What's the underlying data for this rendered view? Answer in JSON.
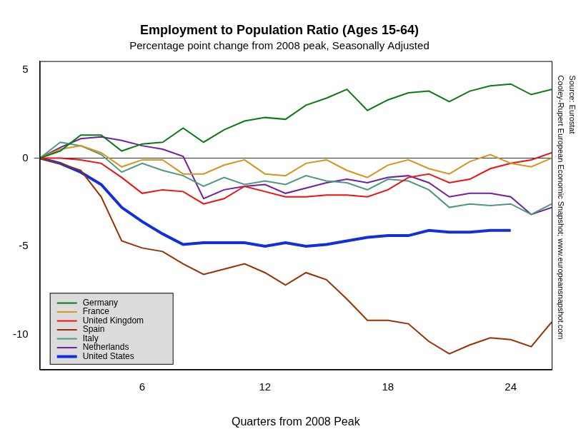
{
  "chart_data": {
    "type": "line",
    "title": "Employment to Population Ratio (Ages 15-64)",
    "subtitle": "Percentage point change from 2008 peak, Seasonally Adjusted",
    "x_label": "Quarters from 2008 Peak",
    "annotations": [
      "Cooley-Rupert European Economic Snapshot; www.europeansnapshot.com",
      "Source: Eurostat"
    ],
    "x": [
      1,
      2,
      3,
      4,
      5,
      6,
      7,
      8,
      9,
      10,
      11,
      12,
      13,
      14,
      15,
      16,
      17,
      18,
      19,
      20,
      21,
      22,
      23,
      24,
      25,
      26
    ],
    "series": [
      {
        "name": "Germany",
        "color": "#0b7a14",
        "line_style": "solid",
        "values": [
          0,
          0.4,
          1.3,
          1.3,
          0.4,
          0.8,
          0.9,
          1.7,
          0.9,
          1.6,
          2.1,
          2.3,
          2.2,
          3.0,
          3.4,
          3.9,
          2.7,
          3.3,
          3.7,
          3.8,
          3.2,
          3.8,
          4.1,
          4.2,
          3.6,
          3.9
        ]
      },
      {
        "name": "France",
        "color": "#d9931f",
        "line_style": "solid",
        "values": [
          0,
          0.5,
          0.7,
          0.3,
          -0.5,
          -0.1,
          -0.1,
          -0.9,
          -0.9,
          -0.4,
          -0.1,
          -0.9,
          -1.0,
          -0.3,
          -0.1,
          -0.7,
          -1.1,
          -0.4,
          -0.1,
          -0.6,
          -0.9,
          -0.2,
          0.2,
          -0.3,
          -0.5,
          0.0
        ]
      },
      {
        "name": "United Kingdom",
        "color": "#f01010",
        "line_style": "solid",
        "values": [
          0,
          0,
          -0.1,
          -0.3,
          -1.1,
          -2.0,
          -1.8,
          -1.9,
          -2.6,
          -2.3,
          -1.6,
          -1.9,
          -2.2,
          -2.2,
          -2.1,
          -2.1,
          -2.2,
          -1.8,
          -1.1,
          -0.9,
          -1.4,
          -1.2,
          -0.6,
          -0.3,
          -0.1,
          0.3
        ]
      },
      {
        "name": "Spain",
        "color": "#9a3000",
        "line_style": "solid",
        "values": [
          0,
          -0.3,
          -0.7,
          -2.2,
          -4.7,
          -5.1,
          -5.3,
          -6.0,
          -6.6,
          -6.3,
          -6.0,
          -6.5,
          -7.2,
          -6.5,
          -6.9,
          -8.0,
          -9.2,
          -9.2,
          -9.4,
          -10.4,
          -11.1,
          -10.6,
          -10.2,
          -10.3,
          -10.7,
          -9.3
        ]
      },
      {
        "name": "Italy",
        "color": "#4a9a7e",
        "line_style": "solid",
        "values": [
          0,
          0.9,
          0.7,
          0.2,
          -0.8,
          -0.3,
          -0.7,
          -1.0,
          -1.6,
          -1.1,
          -1.5,
          -1.3,
          -1.5,
          -1.0,
          -1.3,
          -1.4,
          -1.8,
          -1.2,
          -1.3,
          -1.8,
          -2.8,
          -2.6,
          -2.7,
          -2.6,
          -3.2,
          -2.6
        ]
      },
      {
        "name": "Netherlands",
        "color": "#7020a0",
        "line_style": "solid",
        "values": [
          0,
          0.6,
          1.1,
          1.2,
          1.0,
          0.7,
          0.5,
          0.1,
          -2.3,
          -1.8,
          -1.6,
          -1.5,
          -2.0,
          -1.7,
          -1.4,
          -1.2,
          -1.4,
          -1.1,
          -1.0,
          -1.4,
          -2.2,
          -2.0,
          -2.0,
          -2.2,
          -3.2,
          -2.8
        ]
      },
      {
        "name": "United States",
        "color": "#1030e0",
        "line_style": "thick",
        "values": [
          0,
          -0.3,
          -0.8,
          -1.5,
          -2.8,
          -3.6,
          -4.3,
          -4.9,
          -4.8,
          -4.8,
          -4.8,
          -5.0,
          -4.8,
          -5.0,
          -4.9,
          -4.7,
          -4.5,
          -4.4,
          -4.4,
          -4.1,
          -4.2,
          -4.2,
          -4.1,
          -4.1,
          null,
          null
        ]
      }
    ],
    "xlim": [
      1,
      26
    ],
    "ylim": [
      -12,
      5.5
    ],
    "xticks": [
      6,
      12,
      18,
      24
    ],
    "yticks": [
      -10,
      -5,
      0,
      5
    ],
    "grid": false,
    "legend": "bottom-left"
  }
}
